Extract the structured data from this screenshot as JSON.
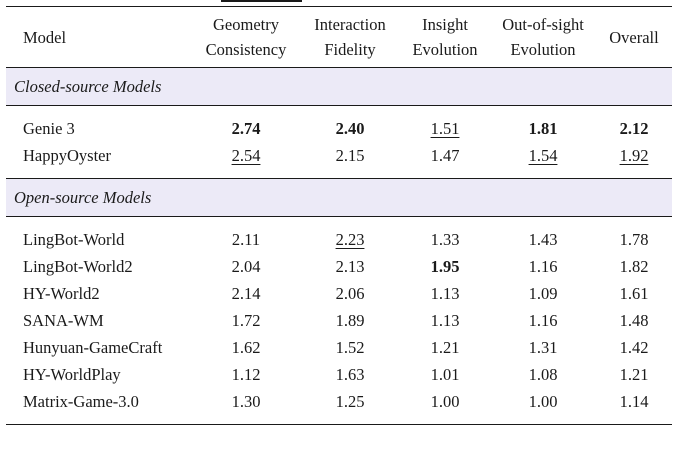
{
  "table": {
    "columns": [
      "Model",
      "Geometry\nConsistency",
      "Interaction\nFidelity",
      "Insight\nEvolution",
      "Out-of-sight\nEvolution",
      "Overall"
    ],
    "column_lines": [
      [
        "Model"
      ],
      [
        "Geometry",
        "Consistency"
      ],
      [
        "Interaction",
        "Fidelity"
      ],
      [
        "Insight",
        "Evolution"
      ],
      [
        "Out-of-sight",
        "Evolution"
      ],
      [
        "Overall"
      ]
    ],
    "sections": [
      {
        "title": "Closed-source Models",
        "rows": [
          {
            "model": "Genie 3",
            "values": [
              "2.74",
              "2.40",
              "1.51",
              "1.81",
              "2.12"
            ],
            "styles": [
              "best",
              "best",
              "second",
              "best",
              "best"
            ]
          },
          {
            "model": "HappyOyster",
            "values": [
              "2.54",
              "2.15",
              "1.47",
              "1.54",
              "1.92"
            ],
            "styles": [
              "second",
              "",
              "",
              "second",
              "second"
            ]
          }
        ]
      },
      {
        "title": "Open-source Models",
        "rows": [
          {
            "model": "LingBot-World",
            "values": [
              "2.11",
              "2.23",
              "1.33",
              "1.43",
              "1.78"
            ],
            "styles": [
              "",
              "second",
              "",
              "",
              ""
            ]
          },
          {
            "model": "LingBot-World2",
            "values": [
              "2.04",
              "2.13",
              "1.95",
              "1.16",
              "1.82"
            ],
            "styles": [
              "",
              "",
              "best",
              "",
              ""
            ]
          },
          {
            "model": "HY-World2",
            "values": [
              "2.14",
              "2.06",
              "1.13",
              "1.09",
              "1.61"
            ],
            "styles": [
              "",
              "",
              "",
              "",
              ""
            ]
          },
          {
            "model": "SANA-WM",
            "values": [
              "1.72",
              "1.89",
              "1.13",
              "1.16",
              "1.48"
            ],
            "styles": [
              "",
              "",
              "",
              "",
              ""
            ]
          },
          {
            "model": "Hunyuan-GameCraft",
            "values": [
              "1.62",
              "1.52",
              "1.21",
              "1.31",
              "1.42"
            ],
            "styles": [
              "",
              "",
              "",
              "",
              ""
            ]
          },
          {
            "model": "HY-WorldPlay",
            "values": [
              "1.12",
              "1.63",
              "1.01",
              "1.08",
              "1.21"
            ],
            "styles": [
              "",
              "",
              "",
              "",
              ""
            ]
          },
          {
            "model": "Matrix-Game-3.0",
            "values": [
              "1.30",
              "1.25",
              "1.00",
              "1.00",
              "1.14"
            ],
            "styles": [
              "",
              "",
              "",
              "",
              ""
            ]
          }
        ]
      }
    ]
  }
}
